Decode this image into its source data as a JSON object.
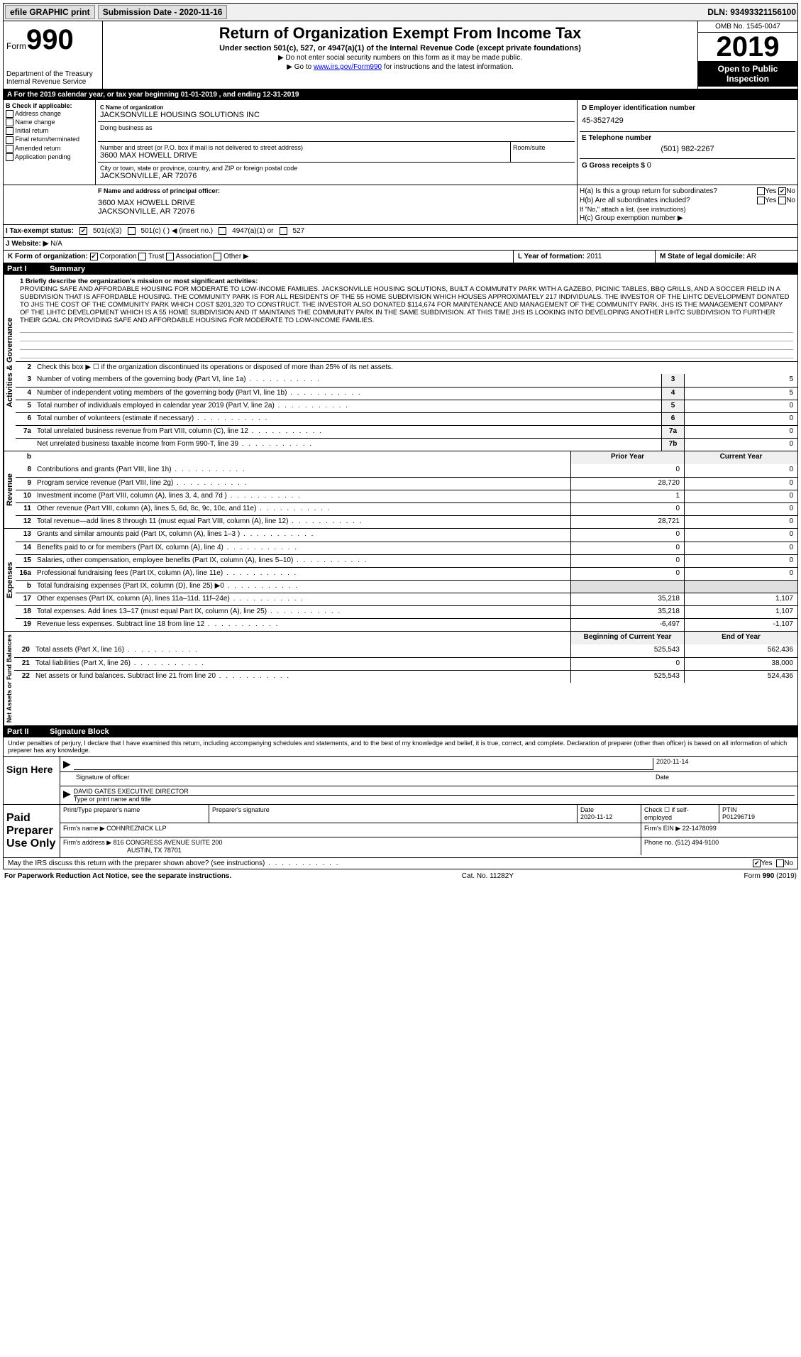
{
  "topbar": {
    "efile": "efile GRAPHIC print",
    "submission_label": "Submission Date - 2020-11-16",
    "dln": "DLN: 93493321156100"
  },
  "header": {
    "form_label": "Form",
    "form_number": "990",
    "dept": "Department of the Treasury\nInternal Revenue Service",
    "title": "Return of Organization Exempt From Income Tax",
    "sub1": "Under section 501(c), 527, or 4947(a)(1) of the Internal Revenue Code (except private foundations)",
    "sub2": "▶ Do not enter social security numbers on this form as it may be made public.",
    "sub3_pre": "▶ Go to ",
    "sub3_link": "www.irs.gov/Form990",
    "sub3_post": " for instructions and the latest information.",
    "omb": "OMB No. 1545-0047",
    "year": "2019",
    "open": "Open to Public Inspection"
  },
  "cal": {
    "text_pre": "A  For the 2019 calendar year, or tax year beginning ",
    "begin": "01-01-2019",
    "mid": " , and ending ",
    "end": "12-31-2019"
  },
  "B": {
    "label": "B Check if applicable:",
    "opts": [
      "Address change",
      "Name change",
      "Initial return",
      "Final return/terminated",
      "Amended return",
      "Application pending"
    ]
  },
  "C": {
    "name_lbl": "C Name of organization",
    "name": "JACKSONVILLE HOUSING SOLUTIONS INC",
    "dba_lbl": "Doing business as",
    "dba": "",
    "street_lbl": "Number and street (or P.O. box if mail is not delivered to street address)",
    "street": "3600 MAX HOWELL DRIVE",
    "room_lbl": "Room/suite",
    "room": "",
    "city_lbl": "City or town, state or province, country, and ZIP or foreign postal code",
    "city": "JACKSONVILLE, AR  72076"
  },
  "D": {
    "lbl": "D Employer identification number",
    "val": "45-3527429"
  },
  "E": {
    "lbl": "E Telephone number",
    "val": "(501) 982-2267"
  },
  "G": {
    "lbl": "G Gross receipts $",
    "val": "0"
  },
  "F": {
    "lbl": "F  Name and address of principal officer:",
    "line1": "3600 MAX HOWELL DRIVE",
    "line2": "JACKSONVILLE, AR  72076"
  },
  "H": {
    "a_lbl": "H(a)  Is this a group return for subordinates?",
    "a_yes": "Yes",
    "a_no": "No",
    "b_lbl": "H(b)  Are all subordinates included?",
    "b_yes": "Yes",
    "b_no": "No",
    "b_note": "If \"No,\" attach a list. (see instructions)",
    "c_lbl": "H(c)  Group exemption number ▶"
  },
  "I": {
    "lbl": "I   Tax-exempt status:",
    "o1": "501(c)(3)",
    "o2": "501(c) (   ) ◀ (insert no.)",
    "o3": "4947(a)(1) or",
    "o4": "527"
  },
  "J": {
    "lbl": "J   Website: ▶",
    "val": "N/A"
  },
  "K": {
    "lbl": "K Form of organization:",
    "o1": "Corporation",
    "o2": "Trust",
    "o3": "Association",
    "o4": "Other ▶"
  },
  "L": {
    "lbl": "L Year of formation:",
    "val": "2011"
  },
  "M": {
    "lbl": "M State of legal domicile:",
    "val": "AR"
  },
  "part1": {
    "num": "Part I",
    "title": "Summary"
  },
  "mission": {
    "lbl": "1   Briefly describe the organization's mission or most significant activities:",
    "text": "PROVIDING SAFE AND AFFORDABLE HOUSING FOR MODERATE TO LOW-INCOME FAMILIES. JACKSONVILLE HOUSING SOLUTIONS, BUILT A COMMUNITY PARK WITH A GAZEBO, PICINIC TABLES, BBQ GRILLS, AND A SOCCER FIELD IN A SUBDIVISION THAT IS AFFORDABLE HOUSING. THE COMMUNITY PARK IS FOR ALL RESIDENTS OF THE 55 HOME SUBDIVISION WHICH HOUSES APPROXIMATELY 217 INDIVIDUALS. THE INVESTOR OF THE LIHTC DEVELOPMENT DONATED TO JHS THE COST OF THE COMMUNITY PARK WHICH COST $201,320 TO CONSTRUCT. THE INVESTOR ALSO DONATED $114,674 FOR MAINTENANCE AND MANAGEMENT OF THE COMMUNITY PARK. JHS IS THE MANAGEMENT COMPANY OF THE LIHTC DEVELOPMENT WHICH IS A 55 HOME SUBDIVISION AND IT MAINTAINS THE COMMUNITY PARK IN THE SAME SUBDIVISION. AT THIS TIME JHS IS LOOKING INTO DEVELOPING ANOTHER LIHTC SUBDIVISION TO FURTHER THEIR GOAL ON PROVIDING SAFE AND AFFORDABLE HOUSING FOR MODERATE TO LOW-INCOME FAMILIES."
  },
  "line2": "Check this box ▶ ☐ if the organization discontinued its operations or disposed of more than 25% of its net assets.",
  "gov": [
    {
      "n": "3",
      "d": "Number of voting members of the governing body (Part VI, line 1a)",
      "b": "3",
      "v": "5"
    },
    {
      "n": "4",
      "d": "Number of independent voting members of the governing body (Part VI, line 1b)",
      "b": "4",
      "v": "5"
    },
    {
      "n": "5",
      "d": "Total number of individuals employed in calendar year 2019 (Part V, line 2a)",
      "b": "5",
      "v": "0"
    },
    {
      "n": "6",
      "d": "Total number of volunteers (estimate if necessary)",
      "b": "6",
      "v": "0"
    },
    {
      "n": "7a",
      "d": "Total unrelated business revenue from Part VIII, column (C), line 12",
      "b": "7a",
      "v": "0"
    },
    {
      "n": "",
      "d": "Net unrelated business taxable income from Form 990-T, line 39",
      "b": "7b",
      "v": "0"
    }
  ],
  "rev_hdr": {
    "b": "b",
    "prior": "Prior Year",
    "current": "Current Year"
  },
  "rev": [
    {
      "n": "8",
      "d": "Contributions and grants (Part VIII, line 1h)",
      "p": "0",
      "c": "0"
    },
    {
      "n": "9",
      "d": "Program service revenue (Part VIII, line 2g)",
      "p": "28,720",
      "c": "0"
    },
    {
      "n": "10",
      "d": "Investment income (Part VIII, column (A), lines 3, 4, and 7d )",
      "p": "1",
      "c": "0"
    },
    {
      "n": "11",
      "d": "Other revenue (Part VIII, column (A), lines 5, 6d, 8c, 9c, 10c, and 11e)",
      "p": "0",
      "c": "0"
    },
    {
      "n": "12",
      "d": "Total revenue—add lines 8 through 11 (must equal Part VIII, column (A), line 12)",
      "p": "28,721",
      "c": "0"
    }
  ],
  "exp": [
    {
      "n": "13",
      "d": "Grants and similar amounts paid (Part IX, column (A), lines 1–3 )",
      "p": "0",
      "c": "0"
    },
    {
      "n": "14",
      "d": "Benefits paid to or for members (Part IX, column (A), line 4)",
      "p": "0",
      "c": "0"
    },
    {
      "n": "15",
      "d": "Salaries, other compensation, employee benefits (Part IX, column (A), lines 5–10)",
      "p": "0",
      "c": "0"
    },
    {
      "n": "16a",
      "d": "Professional fundraising fees (Part IX, column (A), line 11e)",
      "p": "0",
      "c": "0"
    },
    {
      "n": "b",
      "d": "Total fundraising expenses (Part IX, column (D), line 25) ▶0",
      "p": "",
      "c": "",
      "grey": true
    },
    {
      "n": "17",
      "d": "Other expenses (Part IX, column (A), lines 11a–11d, 11f–24e)",
      "p": "35,218",
      "c": "1,107"
    },
    {
      "n": "18",
      "d": "Total expenses. Add lines 13–17 (must equal Part IX, column (A), line 25)",
      "p": "35,218",
      "c": "1,107"
    },
    {
      "n": "19",
      "d": "Revenue less expenses. Subtract line 18 from line 12",
      "p": "-6,497",
      "c": "-1,107"
    }
  ],
  "na_hdr": {
    "prior": "Beginning of Current Year",
    "current": "End of Year"
  },
  "na": [
    {
      "n": "20",
      "d": "Total assets (Part X, line 16)",
      "p": "525,543",
      "c": "562,436"
    },
    {
      "n": "21",
      "d": "Total liabilities (Part X, line 26)",
      "p": "0",
      "c": "38,000"
    },
    {
      "n": "22",
      "d": "Net assets or fund balances. Subtract line 21 from line 20",
      "p": "525,543",
      "c": "524,436"
    }
  ],
  "part2": {
    "num": "Part II",
    "title": "Signature Block"
  },
  "perjury": "Under penalties of perjury, I declare that I have examined this return, including accompanying schedules and statements, and to the best of my knowledge and belief, it is true, correct, and complete. Declaration of preparer (other than officer) is based on all information of which preparer has any knowledge.",
  "sign": {
    "here": "Sign Here",
    "sig_lbl": "Signature of officer",
    "date": "2020-11-14",
    "date_lbl": "Date",
    "name": "DAVID GATES  EXECUTIVE DIRECTOR",
    "name_lbl": "Type or print name and title"
  },
  "paid": {
    "title": "Paid Preparer Use Only",
    "h1": "Print/Type preparer's name",
    "h2": "Preparer's signature",
    "h3_lbl": "Date",
    "h3": "2020-11-12",
    "h4_lbl": "Check ☐ if self-employed",
    "h5_lbl": "PTIN",
    "h5": "P01296719",
    "firm_lbl": "Firm's name   ▶",
    "firm": "COHNREZNICK LLP",
    "ein_lbl": "Firm's EIN ▶",
    "ein": "22-1478099",
    "addr_lbl": "Firm's address ▶",
    "addr1": "816 CONGRESS AVENUE SUITE 200",
    "addr2": "AUSTIN, TX  78701",
    "phone_lbl": "Phone no.",
    "phone": "(512) 494-9100"
  },
  "discuss": {
    "q": "May the IRS discuss this return with the preparer shown above? (see instructions)",
    "yes": "Yes",
    "no": "No"
  },
  "foot": {
    "l": "For Paperwork Reduction Act Notice, see the separate instructions.",
    "m": "Cat. No. 11282Y",
    "r": "Form 990 (2019)"
  },
  "side": {
    "ag": "Activities & Governance",
    "rev": "Revenue",
    "exp": "Expenses",
    "na": "Net Assets or Fund Balances"
  }
}
